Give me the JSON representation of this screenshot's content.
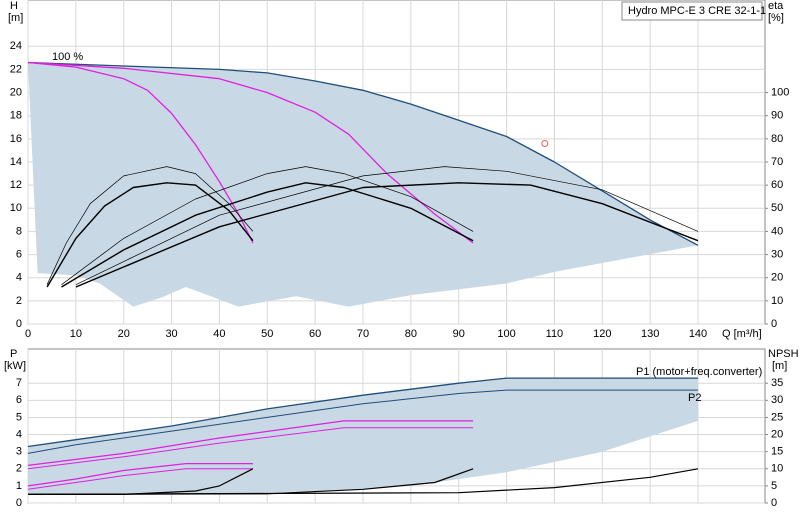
{
  "chart_data": [
    {
      "type": "line",
      "title": "Hydro MPC-E 3 CRE 32-1-1",
      "xlabel": "Q [m³/h]",
      "ylabel": "H",
      "yunit": "[m]",
      "y2label": "eta",
      "y2unit": "[%]",
      "annotations": [
        "100 %"
      ],
      "xlim": [
        0,
        154
      ],
      "xticks": [
        0,
        10,
        20,
        30,
        40,
        50,
        60,
        70,
        80,
        90,
        100,
        110,
        120,
        130,
        140
      ],
      "ylim": [
        0,
        28
      ],
      "yticks": [
        0,
        2,
        4,
        6,
        8,
        10,
        12,
        14,
        16,
        18,
        20,
        22,
        24
      ],
      "y2lim": [
        0,
        140
      ],
      "y2ticks": [
        0,
        10,
        20,
        30,
        40,
        50,
        60,
        70,
        80,
        90,
        100
      ],
      "grid": true,
      "series": [
        {
          "color": "#c9d8e5",
          "fill": true,
          "x": [
            0,
            20,
            40,
            50,
            60,
            70,
            80,
            90,
            100,
            110,
            120,
            130,
            140,
            110,
            100,
            80,
            67,
            56,
            44,
            33,
            28,
            22,
            15,
            10,
            2
          ],
          "values": [
            22.6,
            22.3,
            22,
            21.7,
            21,
            20.2,
            19,
            17.6,
            16.2,
            14,
            11.5,
            9,
            6.8,
            4.5,
            3.5,
            2.5,
            1.5,
            2.4,
            1.5,
            3.2,
            2.3,
            1.5,
            3.5,
            4.2,
            4.4
          ]
        },
        {
          "color": "#1f4e79",
          "width": 1.3,
          "x": [
            0,
            20,
            40,
            50,
            60,
            70,
            80,
            90,
            100,
            110,
            120,
            130,
            140
          ],
          "values": [
            22.6,
            22.3,
            22,
            21.7,
            21,
            20.2,
            19,
            17.6,
            16.2,
            14,
            11.5,
            9,
            6.8
          ]
        },
        {
          "color": "#e020e0",
          "width": 1.3,
          "x": [
            0,
            10,
            20,
            25,
            30,
            35,
            40,
            44,
            47
          ],
          "values": [
            22.6,
            22.2,
            21.2,
            20.2,
            18.2,
            15.5,
            12.3,
            9.5,
            7
          ]
        },
        {
          "color": "#e020e0",
          "width": 1.3,
          "x": [
            0,
            20,
            40,
            50,
            60,
            67,
            75,
            85,
            93
          ],
          "values": [
            22.6,
            22.1,
            21.2,
            20,
            18.3,
            16.4,
            13,
            9.5,
            7
          ]
        },
        {
          "color": "#000000",
          "width": 0.7,
          "axis": "y2",
          "x": [
            4,
            8,
            13,
            20,
            29,
            35,
            42,
            47
          ],
          "values": [
            17,
            35,
            52,
            64,
            68,
            65,
            52,
            40
          ]
        },
        {
          "color": "#000000",
          "width": 1.4,
          "axis": "y2",
          "x": [
            4,
            10,
            16,
            22,
            29,
            35,
            42,
            47
          ],
          "values": [
            16,
            37,
            51,
            59,
            61,
            60,
            49,
            36
          ]
        },
        {
          "color": "#000000",
          "width": 0.7,
          "axis": "y2",
          "x": [
            7,
            20,
            35,
            50,
            58,
            66,
            80,
            93
          ],
          "values": [
            17,
            37,
            54,
            65,
            68,
            65,
            55,
            40
          ]
        },
        {
          "color": "#000000",
          "width": 1.4,
          "axis": "y2",
          "x": [
            7,
            20,
            35,
            50,
            58,
            66,
            80,
            93
          ],
          "values": [
            16,
            32,
            47,
            57,
            61,
            59,
            50,
            36
          ]
        },
        {
          "color": "#000000",
          "width": 0.7,
          "axis": "y2",
          "x": [
            10,
            40,
            70,
            87,
            100,
            120,
            140
          ],
          "values": [
            17,
            47,
            64,
            68,
            66,
            58,
            40
          ]
        },
        {
          "color": "#000000",
          "width": 1.4,
          "axis": "y2",
          "x": [
            10,
            40,
            70,
            90,
            105,
            120,
            140
          ],
          "values": [
            16,
            42,
            59,
            61,
            60,
            52,
            36
          ]
        },
        {
          "color": "#e06060",
          "marker": true,
          "x": [
            108
          ],
          "values": [
            15.6
          ]
        }
      ]
    },
    {
      "type": "line",
      "ylabel": "P",
      "yunit": "[kW]",
      "y2label": "NPSH",
      "y2unit": "[m]",
      "annotations": [
        "P1 (motor+freq.converter)",
        "P2"
      ],
      "xlim": [
        0,
        154
      ],
      "ylim": [
        0,
        9
      ],
      "yticks": [
        0,
        1,
        2,
        3,
        4,
        5,
        6,
        7
      ],
      "y2lim": [
        0,
        45
      ],
      "y2ticks": [
        0,
        5,
        10,
        15,
        20,
        25,
        30,
        35
      ],
      "grid": true,
      "series": [
        {
          "color": "#c9d8e5",
          "fill": true,
          "x": [
            0,
            10,
            30,
            50,
            70,
            90,
            100,
            140,
            140,
            120,
            100,
            80,
            60,
            40,
            0
          ],
          "values": [
            3.3,
            3.7,
            4.5,
            5.5,
            6.3,
            7,
            7.3,
            7.3,
            4.8,
            3,
            1.8,
            1,
            0.7,
            0.5,
            0.5
          ]
        },
        {
          "color": "#1f4e79",
          "width": 1.3,
          "x": [
            0,
            10,
            30,
            50,
            70,
            90,
            100,
            140
          ],
          "values": [
            3.3,
            3.7,
            4.5,
            5.5,
            6.3,
            7,
            7.3,
            7.3
          ]
        },
        {
          "color": "#1f4e79",
          "width": 1,
          "x": [
            0,
            10,
            30,
            50,
            70,
            90,
            100,
            140
          ],
          "values": [
            2.9,
            3.4,
            4.2,
            5,
            5.8,
            6.4,
            6.6,
            6.6
          ]
        },
        {
          "color": "#e020e0",
          "width": 1.2,
          "x": [
            0,
            10,
            20,
            33,
            47
          ],
          "values": [
            1,
            1.4,
            1.9,
            2.3,
            2.3
          ]
        },
        {
          "color": "#e020e0",
          "width": 1,
          "x": [
            0,
            10,
            20,
            33,
            47
          ],
          "values": [
            0.8,
            1.2,
            1.6,
            2,
            2
          ]
        },
        {
          "color": "#e020e0",
          "width": 1.2,
          "x": [
            0,
            20,
            40,
            66,
            93
          ],
          "values": [
            2.2,
            2.9,
            3.8,
            4.8,
            4.8
          ]
        },
        {
          "color": "#e020e0",
          "width": 1,
          "x": [
            0,
            20,
            40,
            66,
            93
          ],
          "values": [
            2,
            2.7,
            3.5,
            4.4,
            4.4
          ]
        },
        {
          "color": "#000000",
          "width": 1.2,
          "axis": "y2",
          "x": [
            0,
            20,
            35,
            40,
            47
          ],
          "values": [
            2.5,
            2.5,
            3.5,
            5,
            10
          ]
        },
        {
          "color": "#000000",
          "width": 1.2,
          "axis": "y2",
          "x": [
            0,
            50,
            70,
            85,
            93
          ],
          "values": [
            2.5,
            2.7,
            4,
            6,
            10
          ]
        },
        {
          "color": "#000000",
          "width": 1.2,
          "axis": "y2",
          "x": [
            0,
            90,
            110,
            130,
            140
          ],
          "values": [
            2.5,
            3,
            4.5,
            7.5,
            10
          ]
        }
      ]
    }
  ]
}
